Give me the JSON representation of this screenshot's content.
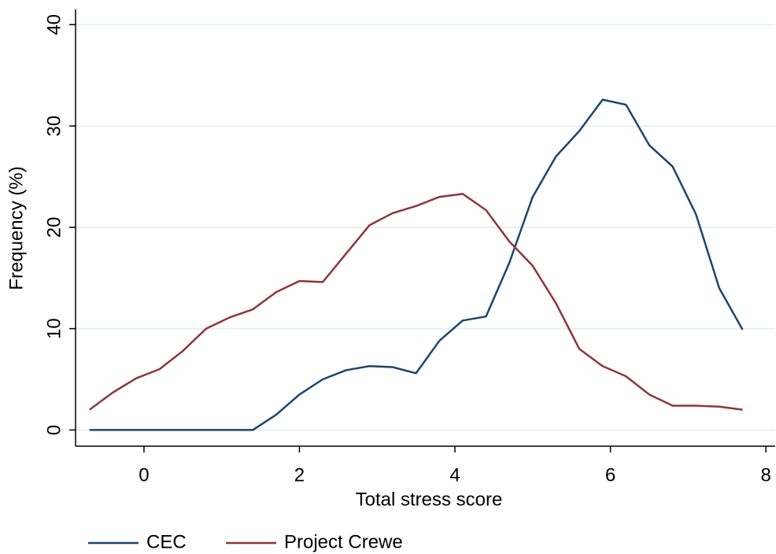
{
  "chart_data": {
    "type": "line",
    "xlabel": "Total stress score",
    "ylabel": "Frequency (%)",
    "x": [
      -0.7,
      -0.4,
      -0.1,
      0.2,
      0.5,
      0.8,
      1.1,
      1.4,
      1.7,
      2.0,
      2.3,
      2.6,
      2.9,
      3.2,
      3.5,
      3.8,
      4.1,
      4.4,
      4.7,
      5.0,
      5.3,
      5.6,
      5.9,
      6.2,
      6.5,
      6.8,
      7.1,
      7.4,
      7.7
    ],
    "series": [
      {
        "name": "CEC",
        "color": "#1a476f",
        "values": [
          0,
          0,
          0,
          0,
          0,
          0,
          0,
          0,
          1.5,
          3.5,
          5.0,
          5.9,
          6.3,
          6.2,
          5.6,
          8.8,
          10.8,
          11.2,
          16.5,
          23.0,
          27.0,
          29.5,
          32.6,
          32.1,
          28.1,
          26.0,
          21.3,
          14.0,
          9.9
        ]
      },
      {
        "name": "Project Crewe",
        "color": "#90353b",
        "values": [
          2.0,
          3.7,
          5.1,
          6.0,
          7.8,
          10.0,
          11.1,
          11.9,
          13.6,
          14.7,
          14.6,
          17.4,
          20.2,
          21.4,
          22.1,
          23.0,
          23.3,
          21.7,
          18.6,
          16.2,
          12.5,
          8.0,
          6.3,
          5.3,
          3.5,
          2.4,
          2.4,
          2.3,
          2.0
        ]
      }
    ],
    "xlim": [
      -0.88,
      8.12
    ],
    "xticks": [
      0,
      2,
      4,
      6,
      8
    ],
    "ylim": [
      -1.6,
      41.5
    ],
    "yticks": [
      0,
      10,
      20,
      30,
      40
    ],
    "grid": true,
    "legend": "bottom-left"
  }
}
